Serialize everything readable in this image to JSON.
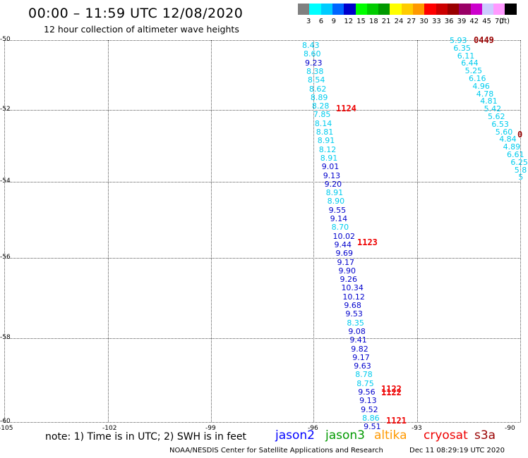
{
  "title": "00:00 – 11:59 UTC 12/08/2020",
  "subtitle": "12 hour collection of altimeter wave heights",
  "scale": {
    "colors": [
      "#808080",
      "#00ffff",
      "#00ccff",
      "#0066ff",
      "#0000cc",
      "#00ff00",
      "#00cc00",
      "#009900",
      "#ffff00",
      "#ffcc00",
      "#ff9900",
      "#ff0000",
      "#cc0000",
      "#990000",
      "#990066",
      "#cc00cc",
      "#ccccff",
      "#ff99ff",
      "#000000"
    ],
    "labels": [
      "3",
      "6",
      "9",
      "12",
      "15",
      "18",
      "21",
      "24",
      "27",
      "30",
      "33",
      "36",
      "39",
      "42",
      "45",
      "70"
    ],
    "unit": "(ft)"
  },
  "axes": {
    "y_labels": [
      "-50",
      "-52",
      "-54",
      "-56",
      "-58",
      "-60"
    ],
    "x_labels": [
      "-105",
      "-102",
      "-99",
      "-96",
      "-93",
      "-90"
    ]
  },
  "tracks": {
    "left": [
      {
        "v": "8.43",
        "c": "#00ccee"
      },
      {
        "v": "8.60",
        "c": "#00ccee"
      },
      {
        "v": "9.23",
        "c": "#0000cc"
      },
      {
        "v": "8.38",
        "c": "#00ccee"
      },
      {
        "v": "8.54",
        "c": "#00ccee"
      },
      {
        "v": "8.62",
        "c": "#00ccee"
      },
      {
        "v": "8.89",
        "c": "#00ccee"
      },
      {
        "v": "8.28",
        "c": "#00ccee"
      },
      {
        "v": "7.85",
        "c": "#00ccee"
      },
      {
        "v": "8.14",
        "c": "#00ccee"
      },
      {
        "v": "8.81",
        "c": "#00ccee"
      },
      {
        "v": "8.91",
        "c": "#00ccee"
      },
      {
        "v": "8.12",
        "c": "#00ccee"
      },
      {
        "v": "8.91",
        "c": "#00ccee"
      },
      {
        "v": "9.01",
        "c": "#0000cc"
      },
      {
        "v": "9.13",
        "c": "#0000cc"
      },
      {
        "v": "9.20",
        "c": "#0000cc"
      },
      {
        "v": "8.91",
        "c": "#00ccee"
      },
      {
        "v": "8.90",
        "c": "#00ccee"
      },
      {
        "v": "9.55",
        "c": "#0000cc"
      },
      {
        "v": "9.14",
        "c": "#0000cc"
      },
      {
        "v": "8.70",
        "c": "#00ccee"
      },
      {
        "v": "10.02",
        "c": "#0000cc"
      },
      {
        "v": "9.44",
        "c": "#0000cc"
      },
      {
        "v": "9.69",
        "c": "#0000cc"
      },
      {
        "v": "9.17",
        "c": "#0000cc"
      },
      {
        "v": "9.90",
        "c": "#0000cc"
      },
      {
        "v": "9.26",
        "c": "#0000cc"
      },
      {
        "v": "10.34",
        "c": "#0000cc"
      },
      {
        "v": "10.12",
        "c": "#0000cc"
      },
      {
        "v": "9.68",
        "c": "#0000cc"
      },
      {
        "v": "9.53",
        "c": "#0000cc"
      },
      {
        "v": "8.35",
        "c": "#00ccee"
      },
      {
        "v": "9.08",
        "c": "#0000cc"
      },
      {
        "v": "9.41",
        "c": "#0000cc"
      },
      {
        "v": "9.82",
        "c": "#0000cc"
      },
      {
        "v": "9.17",
        "c": "#0000cc"
      },
      {
        "v": "9.63",
        "c": "#0000cc"
      },
      {
        "v": "8.78",
        "c": "#00ccee"
      },
      {
        "v": "8.75",
        "c": "#00ccee"
      },
      {
        "v": "9.56",
        "c": "#0000cc"
      },
      {
        "v": "9.13",
        "c": "#0000cc"
      },
      {
        "v": "9.52",
        "c": "#0000cc"
      },
      {
        "v": "8.86",
        "c": "#00ccee"
      },
      {
        "v": "9.51",
        "c": "#0000cc"
      }
    ],
    "right": [
      {
        "v": "5.93",
        "c": "#00ccee"
      },
      {
        "v": "6.35",
        "c": "#00ccee"
      },
      {
        "v": "6.11",
        "c": "#00ccee"
      },
      {
        "v": "6.44",
        "c": "#00ccee"
      },
      {
        "v": "5.25",
        "c": "#00ccee"
      },
      {
        "v": "6.16",
        "c": "#00ccee"
      },
      {
        "v": "4.96",
        "c": "#00ccee"
      },
      {
        "v": "4.78",
        "c": "#00ccee"
      },
      {
        "v": "4.81",
        "c": "#00ccee"
      },
      {
        "v": "5.42",
        "c": "#00ccee"
      },
      {
        "v": "5.62",
        "c": "#00ccee"
      },
      {
        "v": "6.53",
        "c": "#00ccee"
      },
      {
        "v": "5.60",
        "c": "#00ccee"
      },
      {
        "v": "4.84",
        "c": "#00ccee"
      },
      {
        "v": "4.89",
        "c": "#00ccee"
      },
      {
        "v": "6.61",
        "c": "#00ccee"
      },
      {
        "v": "6.25",
        "c": "#00ccee"
      },
      {
        "v": "5.8",
        "c": "#00ccee"
      },
      {
        "v": "5",
        "c": "#00ccee"
      }
    ]
  },
  "times": [
    {
      "t": "0449",
      "c": "#990000"
    },
    {
      "t": "1124",
      "c": "#ee0000"
    },
    {
      "t": "1123",
      "c": "#ee0000"
    },
    {
      "t": "1122",
      "c": "#ee0000"
    },
    {
      "t": "1122",
      "c": "#ee0000"
    },
    {
      "t": "1121",
      "c": "#ee0000"
    },
    {
      "t": "0",
      "c": "#990000"
    }
  ],
  "note": "note: 1) Time is in UTC; 2) SWH is in feet",
  "satellites": [
    {
      "name": "jason2",
      "color": "#0000ff"
    },
    {
      "name": "jason3",
      "color": "#009900"
    },
    {
      "name": "altika",
      "color": "#ff9900"
    },
    {
      "name": "cryosat",
      "color": "#ee0000"
    },
    {
      "name": "s3a",
      "color": "#990000"
    }
  ],
  "footer_left": "NOAA/NESDIS Center for Satellite Applications and Research",
  "footer_right": "Dec 11 08:29:19 UTC 2020"
}
